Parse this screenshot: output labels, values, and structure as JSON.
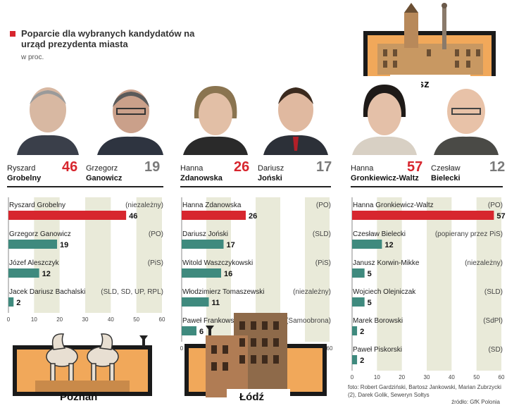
{
  "header": {
    "title": "Poparcie dla wybranych kandydatów na urząd prezydenta miasta",
    "subtitle": "w proc."
  },
  "cities": {
    "poznan": "Poznań",
    "lodz": "Łódź",
    "warszawa": "Warszawa"
  },
  "candidates": [
    {
      "first": "Ryszard",
      "last": "Grobelny",
      "pct": "46"
    },
    {
      "first": "Grzegorz",
      "last": "Ganowicz",
      "pct": "19"
    },
    {
      "first": "Hanna",
      "last": "Zdanowska",
      "pct": "26"
    },
    {
      "first": "Dariusz",
      "last": "Joński",
      "pct": "17"
    },
    {
      "first": "Hanna",
      "last": "Gronkiewicz-Waltz",
      "pct": "57"
    },
    {
      "first": "Czesław",
      "last": "Bielecki",
      "pct": "12"
    }
  ],
  "colors": {
    "red": "#d7262e",
    "teal": "#3f8a7e",
    "band": "#e9ead9"
  },
  "chart_data": [
    {
      "type": "bar",
      "city": "Poznań",
      "categories": [
        "Ryszard Grobelny",
        "Grzegorz Ganowicz",
        "Józef Aleszczyk",
        "Jacek Dariusz Bachalski"
      ],
      "parties": [
        "(niezależny)",
        "(PO)",
        "(PiS)",
        "(SLD, SD, UP, RPL)"
      ],
      "values": [
        46,
        19,
        12,
        2
      ],
      "xlim": [
        0,
        60
      ],
      "ticks": [
        0,
        10,
        20,
        30,
        40,
        50,
        60
      ],
      "xlabel": "",
      "ylabel": ""
    },
    {
      "type": "bar",
      "city": "Łódź",
      "categories": [
        "Hanna Zdanowska",
        "Dariusz Joński",
        "Witold Waszczykowski",
        "Włodzimierz Tomaszewski",
        "Paweł Frankowski"
      ],
      "parties": [
        "(PO)",
        "(SLD)",
        "(PiS)",
        "(niezależny)",
        "(Samoobrona)"
      ],
      "values": [
        26,
        17,
        16,
        11,
        6
      ],
      "xlim": [
        0,
        60
      ],
      "ticks": [
        0,
        60
      ],
      "xlabel": "",
      "ylabel": ""
    },
    {
      "type": "bar",
      "city": "Warszawa",
      "categories": [
        "Hanna Gronkiewicz-Waltz",
        "Czesław Bielecki",
        "Janusz Korwin-Mikke",
        "Wojciech Olejniczak",
        "Marek Borowski",
        "Paweł Piskorski"
      ],
      "parties": [
        "(PO)",
        "(popierany przez PiS)",
        "(niezależny)",
        "(SLD)",
        "(SdPl)",
        "(SD)"
      ],
      "values": [
        57,
        12,
        5,
        5,
        2,
        2
      ],
      "xlim": [
        0,
        60
      ],
      "ticks": [
        0,
        10,
        20,
        30,
        40,
        50,
        60
      ],
      "xlabel": "",
      "ylabel": ""
    }
  ],
  "source": {
    "photos": "foto: Robert Gardziński, Bartosz Jankowski, Marian Zubrzycki (2), Darek Golik, Seweryn Sołtys",
    "data": "źródło: GfK Polonia"
  }
}
